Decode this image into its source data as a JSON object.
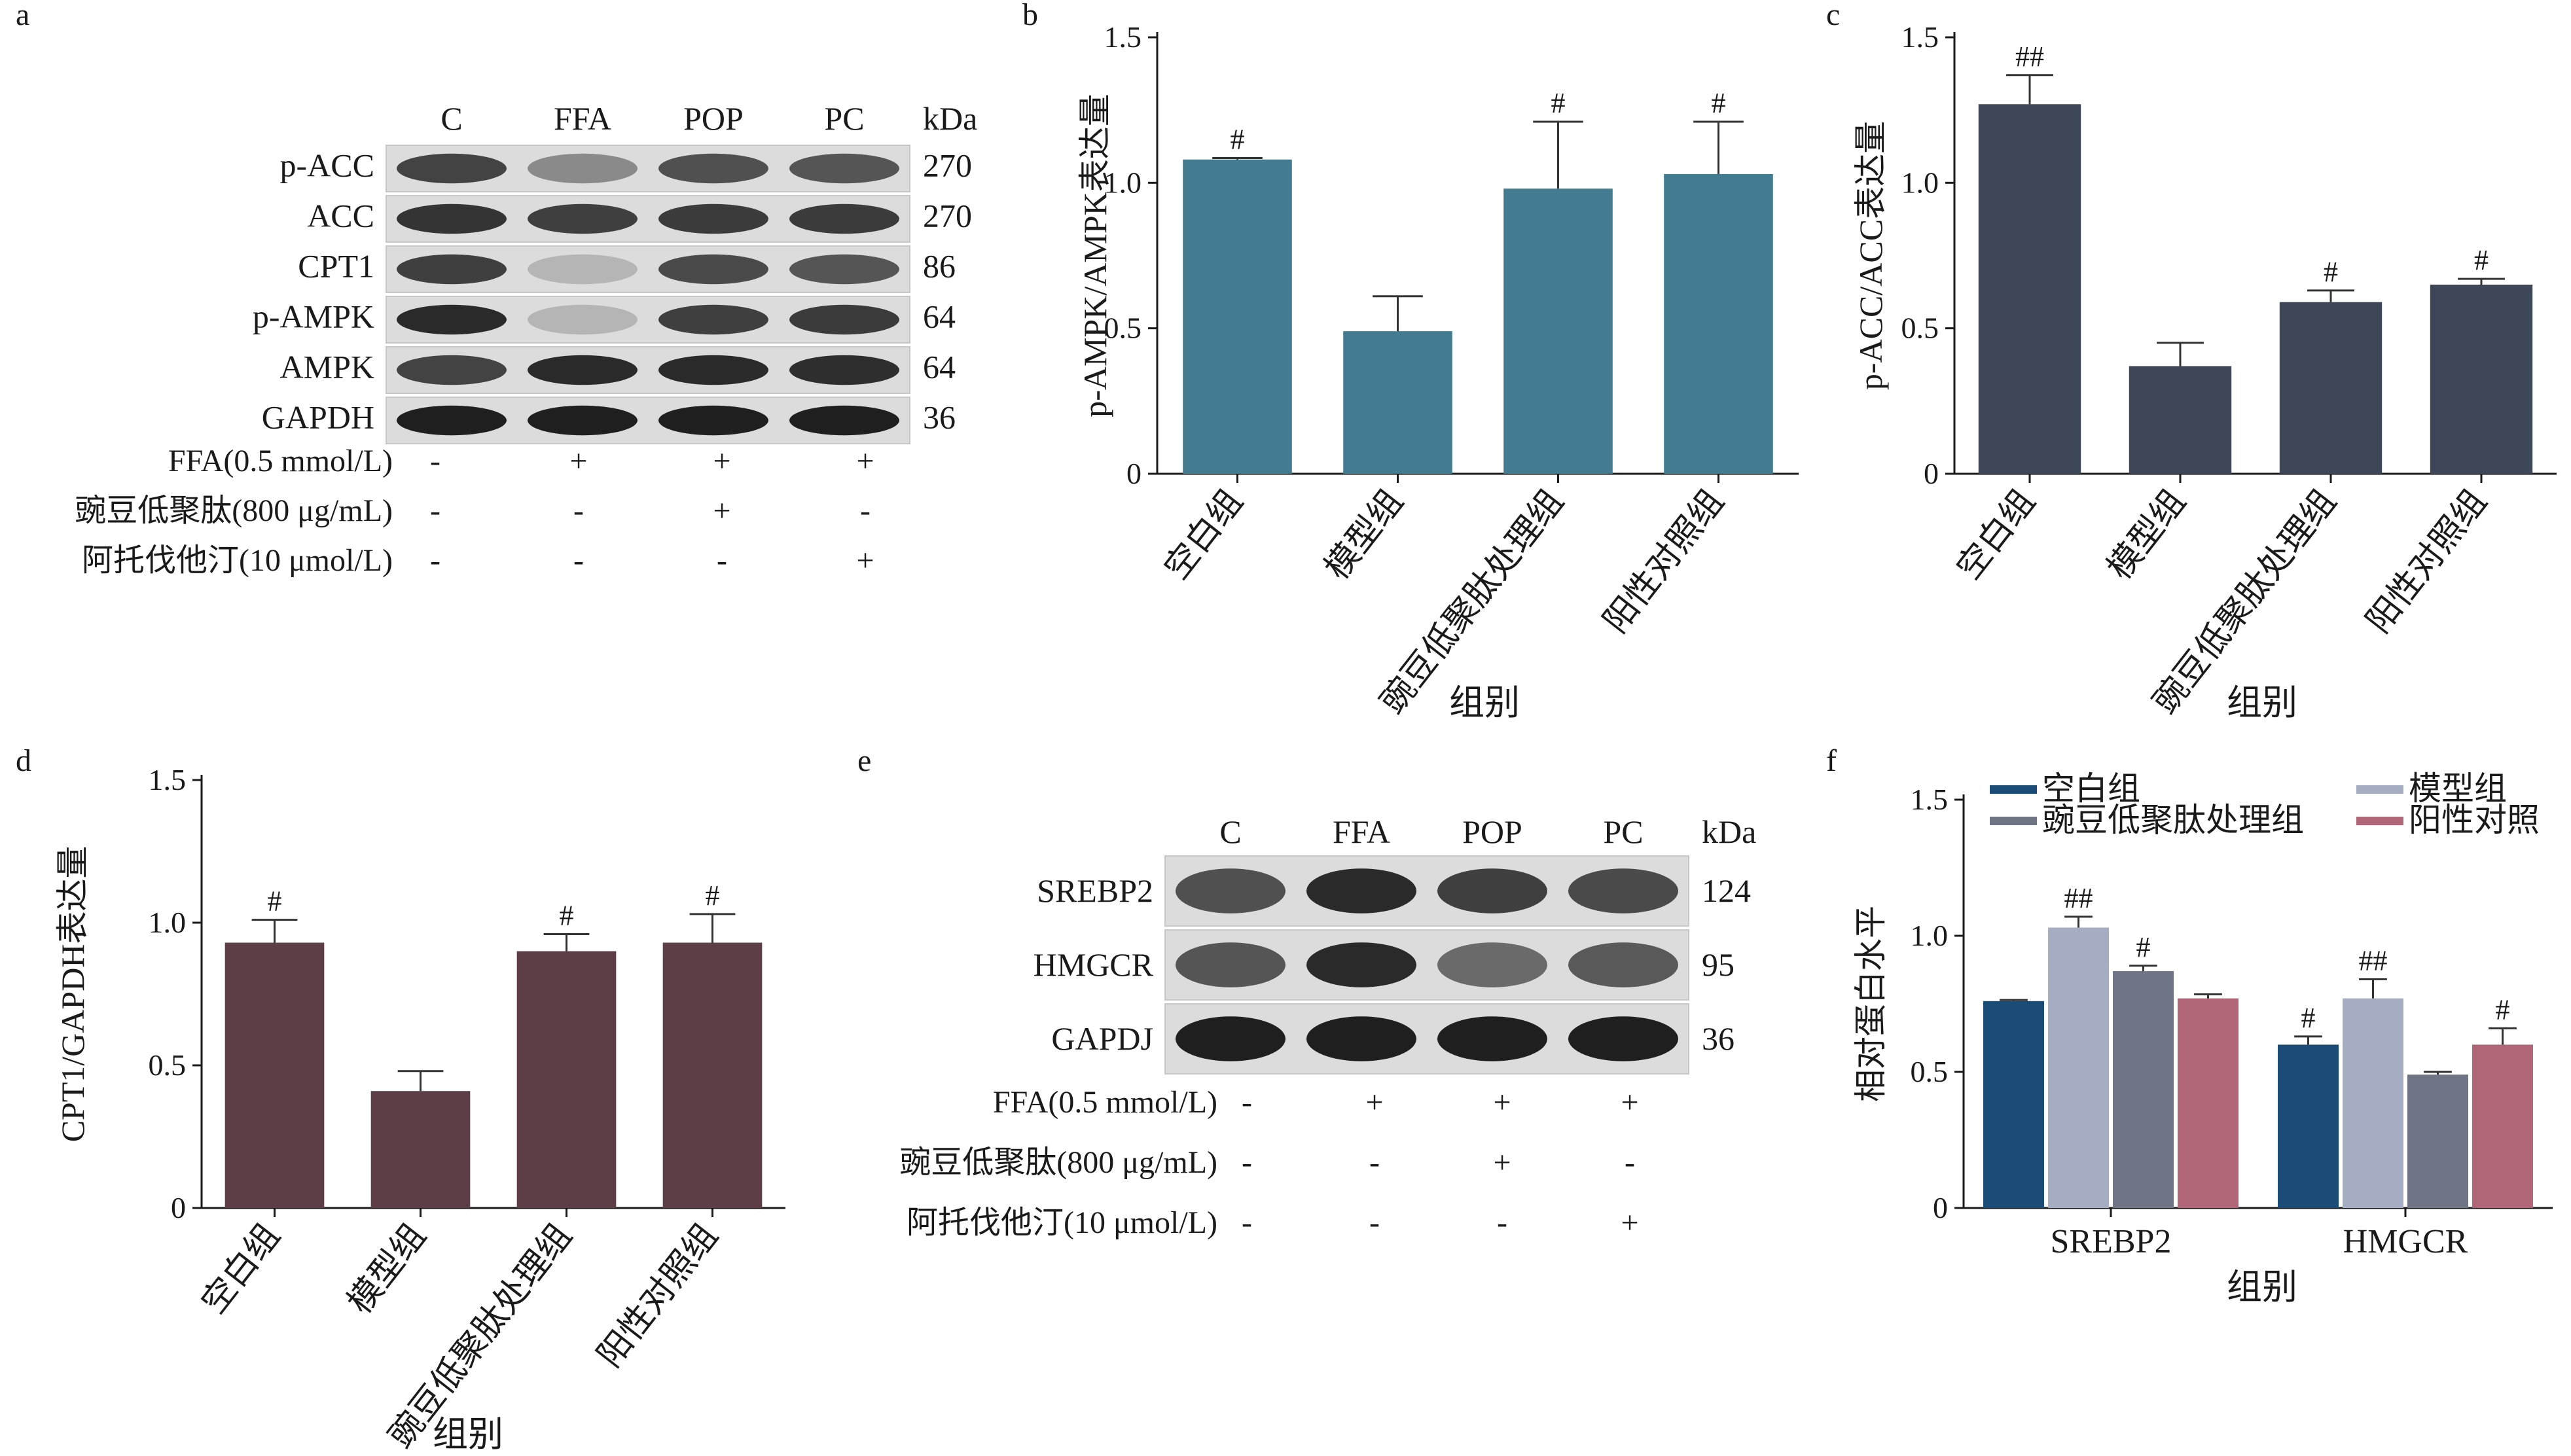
{
  "panels": {
    "a": {
      "letter": "a",
      "lanes": [
        "C",
        "FFA",
        "POP",
        "PC"
      ],
      "kda_header": "kDa",
      "rows": [
        {
          "name": "p-ACC",
          "kda": "270",
          "intensity": [
            0.78,
            0.45,
            0.72,
            0.7
          ]
        },
        {
          "name": "ACC",
          "kda": "270",
          "intensity": [
            0.85,
            0.8,
            0.82,
            0.82
          ]
        },
        {
          "name": "CPT1",
          "kda": "86",
          "intensity": [
            0.8,
            0.25,
            0.75,
            0.7
          ]
        },
        {
          "name": "p-AMPK",
          "kda": "64",
          "intensity": [
            0.9,
            0.25,
            0.8,
            0.82
          ]
        },
        {
          "name": "AMPK",
          "kda": "64",
          "intensity": [
            0.78,
            0.9,
            0.9,
            0.88
          ]
        },
        {
          "name": "GAPDH",
          "kda": "36",
          "intensity": [
            0.95,
            0.95,
            0.95,
            0.95
          ]
        }
      ],
      "treatments": [
        {
          "label": "FFA(0.5 mmol/L)",
          "marks": [
            "-",
            "+",
            "+",
            "+"
          ]
        },
        {
          "label": "豌豆低聚肽(800 μg/mL)",
          "marks": [
            "-",
            "-",
            "+",
            "-"
          ]
        },
        {
          "label": "阿托伐他汀(10 μmol/L)",
          "marks": [
            "-",
            "-",
            "-",
            "+"
          ]
        }
      ]
    },
    "e": {
      "letter": "e",
      "lanes": [
        "C",
        "FFA",
        "POP",
        "PC"
      ],
      "kda_header": "kDa",
      "rows": [
        {
          "name": "SREBP2",
          "kda": "124",
          "intensity": [
            0.72,
            0.9,
            0.8,
            0.75
          ]
        },
        {
          "name": "HMGCR",
          "kda": "95",
          "intensity": [
            0.7,
            0.9,
            0.6,
            0.68
          ]
        },
        {
          "name": "GAPDJ",
          "kda": "36",
          "intensity": [
            0.95,
            0.95,
            0.95,
            0.95
          ]
        }
      ],
      "treatments": [
        {
          "label": "FFA(0.5 mmol/L)",
          "marks": [
            "-",
            "+",
            "+",
            "+"
          ]
        },
        {
          "label": "豌豆低聚肽(800 μg/mL)",
          "marks": [
            "-",
            "-",
            "+",
            "-"
          ]
        },
        {
          "label": "阿托伐他汀(10 μmol/L)",
          "marks": [
            "-",
            "-",
            "-",
            "+"
          ]
        }
      ]
    }
  },
  "chart_data": [
    {
      "panel": "b",
      "type": "bar",
      "categories": [
        "空白组",
        "模型组",
        "豌豆低聚肽处理组",
        "阳性对照组"
      ],
      "values": [
        1.08,
        0.49,
        0.98,
        1.03
      ],
      "errors": [
        0.005,
        0.12,
        0.23,
        0.18
      ],
      "significance": [
        "#",
        "",
        "#",
        "#"
      ],
      "ylabel": "p-AMPK/AMPK表达量",
      "xlabel": "组别",
      "ylim": [
        0,
        1.5
      ],
      "yticks": [
        "0",
        "0.5",
        "1.0",
        "1.5"
      ],
      "color": "#437c91"
    },
    {
      "panel": "c",
      "type": "bar",
      "categories": [
        "空白组",
        "模型组",
        "豌豆低聚肽处理组",
        "阳性对照组"
      ],
      "values": [
        1.27,
        0.37,
        0.59,
        0.65
      ],
      "errors": [
        0.1,
        0.08,
        0.04,
        0.02
      ],
      "significance": [
        "##",
        "",
        "#",
        "#"
      ],
      "ylabel": "p-ACC/ACC表达量",
      "xlabel": "组别",
      "ylim": [
        0,
        1.5
      ],
      "yticks": [
        "0",
        "0.5",
        "1.0",
        "1.5"
      ],
      "color": "#3d4757"
    },
    {
      "panel": "d",
      "type": "bar",
      "categories": [
        "空白组",
        "模型组",
        "豌豆低聚肽处理组",
        "阳性对照组"
      ],
      "values": [
        0.93,
        0.41,
        0.9,
        0.93
      ],
      "errors": [
        0.08,
        0.07,
        0.06,
        0.1
      ],
      "significance": [
        "#",
        "",
        "#",
        "#"
      ],
      "ylabel": "CPT1/GAPDH表达量",
      "xlabel": "组别",
      "ylim": [
        0,
        1.5
      ],
      "yticks": [
        "0",
        "0.5",
        "1.0",
        "1.5"
      ],
      "color": "#5e3e46"
    },
    {
      "panel": "f",
      "type": "bar",
      "categories": [
        "SREBP2",
        "HMGCR"
      ],
      "series": [
        {
          "name": "空白组",
          "color": "#1b4c78",
          "values": [
            0.76,
            0.6
          ],
          "errors": [
            0.004,
            0.03
          ],
          "significance": [
            "",
            "#"
          ]
        },
        {
          "name": "模型组",
          "color": "#a5adc2",
          "values": [
            1.03,
            0.77
          ],
          "errors": [
            0.04,
            0.07
          ],
          "significance": [
            "##",
            "##"
          ]
        },
        {
          "name": "豌豆低聚肽处理组",
          "color": "#6f7584",
          "values": [
            0.87,
            0.49
          ],
          "errors": [
            0.02,
            0.01
          ],
          "significance": [
            "#",
            ""
          ]
        },
        {
          "name": "阳性对照",
          "color": "#b06676",
          "values": [
            0.77,
            0.6
          ],
          "errors": [
            0.015,
            0.06
          ],
          "significance": [
            "",
            "#"
          ]
        }
      ],
      "ylabel": "相对蛋白水平",
      "xlabel": "组别",
      "ylim": [
        0,
        1.5
      ],
      "yticks": [
        "0",
        "0.5",
        "1.0",
        "1.5"
      ],
      "legend": "top"
    }
  ]
}
